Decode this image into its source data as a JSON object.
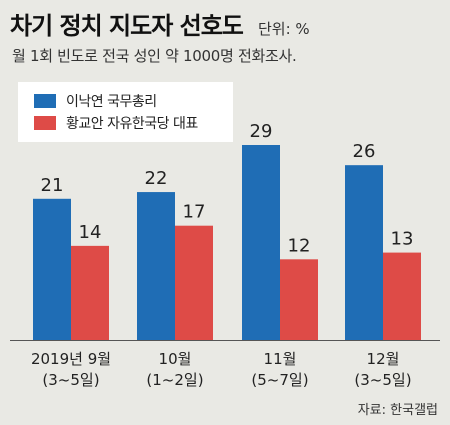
{
  "title": "차기 정치 지도자 선호도",
  "unit": "단위: %",
  "subtitle": "월 1회 빈도로 전국 성인 약 1000명 전화조사.",
  "source": "자료: 한국갤럽",
  "colors": {
    "series1": "#1f6db5",
    "series2": "#de4b47",
    "background": "#e9e9e4",
    "legend_bg": "#ffffff"
  },
  "chart_data": {
    "type": "bar",
    "categories": [
      [
        "2019년 9월",
        "(3~5일)"
      ],
      [
        "10월",
        "(1~2일)"
      ],
      [
        "11월",
        "(5~7일)"
      ],
      [
        "12월",
        "(3~5일)"
      ]
    ],
    "series": [
      {
        "name": "이낙연 국무총리",
        "values": [
          21,
          22,
          29,
          26
        ]
      },
      {
        "name": "황교안 자유한국당 대표",
        "values": [
          14,
          17,
          12,
          13
        ]
      }
    ],
    "ylim": [
      0,
      29
    ],
    "grid": false,
    "legend_position": "top-left"
  }
}
